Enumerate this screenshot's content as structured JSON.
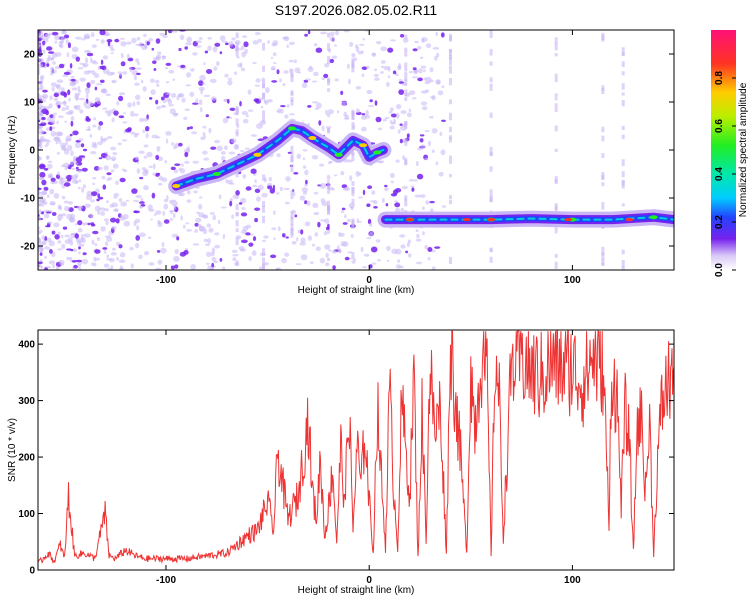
{
  "title": "S197.2026.082.05.02.R11",
  "colors": {
    "line": "#ee3333",
    "axis": "#000000",
    "trace_core": "#7722ee"
  },
  "chart_data": [
    {
      "type": "heatmap",
      "xlabel": "Height of straight line (km)",
      "ylabel": "Frequency (Hz)",
      "xlim": [
        -163,
        150
      ],
      "ylim": [
        -25,
        25
      ],
      "x_ticks": [
        -100,
        0,
        100
      ],
      "x_tick_labels": [
        "-100",
        "0",
        "100"
      ],
      "y_ticks": [
        -20,
        -10,
        0,
        10,
        20
      ],
      "y_tick_labels": [
        "-20",
        "-10",
        "0",
        "10",
        "20"
      ],
      "colorbar": {
        "label": "Normalized spectral amplitude",
        "ticks": [
          "0.0",
          "0.2",
          "0.4",
          "0.6",
          "0.8"
        ],
        "range": [
          0,
          1
        ]
      },
      "trace_segment_1": {
        "x": [
          -95,
          -85,
          -75,
          -65,
          -55,
          -45,
          -38,
          -33,
          -28,
          -20,
          -15,
          -8,
          -3,
          0,
          4,
          7
        ],
        "y": [
          -7.5,
          -6,
          -5,
          -3,
          -1,
          2,
          4.5,
          4,
          2.5,
          0.5,
          -1,
          2,
          1,
          -1.5,
          -0.5,
          0
        ]
      },
      "trace_segment_2": {
        "x": [
          8,
          20,
          40,
          60,
          80,
          100,
          120,
          140,
          150
        ],
        "y": [
          -14.5,
          -14.5,
          -14.5,
          -14.5,
          -14.3,
          -14.5,
          -14.5,
          -14,
          -14.5
        ]
      }
    },
    {
      "type": "line",
      "xlabel": "Height of straight line (km)",
      "ylabel": "SNR (10 * v/v)",
      "xlim": [
        -163,
        150
      ],
      "ylim": [
        0,
        425
      ],
      "x_ticks": [
        -100,
        0,
        100
      ],
      "x_tick_labels": [
        "-100",
        "0",
        "100"
      ],
      "y_ticks": [
        0,
        100,
        200,
        300,
        400
      ],
      "y_tick_labels": [
        "0",
        "100",
        "200",
        "300",
        "400"
      ],
      "series": [
        {
          "name": "SNR",
          "x": [
            -163,
            -158,
            -155,
            -152,
            -150,
            -148,
            -145,
            -140,
            -135,
            -130,
            -128,
            -125,
            -120,
            -115,
            -110,
            -100,
            -90,
            -80,
            -70,
            -65,
            -60,
            -55,
            -50,
            -47,
            -45,
            -40,
            -35,
            -30,
            -28,
            -26,
            -24,
            -22,
            -20,
            -18,
            -16,
            -14,
            -12,
            -10,
            -8,
            -6,
            -4,
            -2,
            0,
            2,
            4,
            6,
            8,
            10,
            12,
            14,
            16,
            18,
            20,
            22,
            24,
            26,
            28,
            30,
            32,
            35,
            38,
            40,
            42,
            45,
            48,
            50,
            52,
            55,
            58,
            60,
            62,
            64,
            66,
            70,
            75,
            80,
            85,
            90,
            95,
            100,
            105,
            110,
            112,
            115,
            117,
            118,
            119,
            120,
            122,
            124,
            126,
            128,
            130,
            132,
            134,
            136,
            138,
            140,
            142,
            144,
            146,
            148,
            150
          ],
          "y": [
            10,
            30,
            15,
            45,
            20,
            130,
            25,
            30,
            20,
            100,
            25,
            20,
            35,
            25,
            20,
            20,
            20,
            25,
            30,
            45,
            60,
            70,
            120,
            70,
            210,
            90,
            130,
            270,
            140,
            90,
            200,
            60,
            110,
            180,
            50,
            220,
            110,
            300,
            70,
            220,
            150,
            250,
            120,
            30,
            290,
            160,
            40,
            320,
            150,
            40,
            300,
            210,
            130,
            350,
            20,
            280,
            60,
            380,
            240,
            290,
            30,
            410,
            320,
            200,
            30,
            360,
            250,
            380,
            340,
            30,
            390,
            300,
            60,
            360,
            380,
            350,
            340,
            370,
            360,
            360,
            330,
            380,
            370,
            360,
            200,
            60,
            330,
            340,
            300,
            120,
            280,
            230,
            30,
            260,
            270,
            140,
            260,
            30,
            200,
            290,
            320,
            340,
            360
          ]
        }
      ]
    }
  ]
}
